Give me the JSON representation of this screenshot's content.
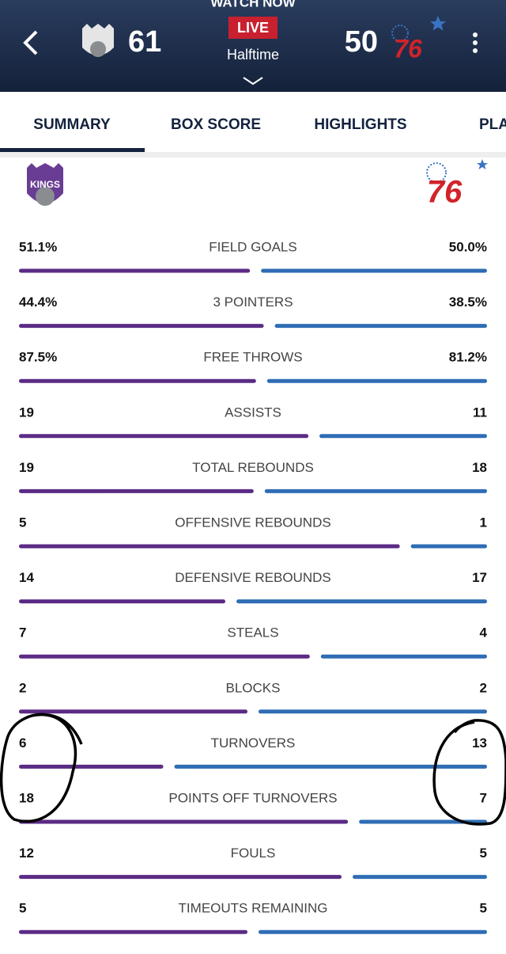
{
  "header": {
    "banner": "WATCH NOW",
    "away_score": "61",
    "home_score": "50",
    "status": "LIVE",
    "period": "Halftime",
    "home_logo": "76",
    "away_logo": "KINGS"
  },
  "tabs": [
    "SUMMARY",
    "BOX SCORE",
    "HIGHLIGHTS",
    "PLA"
  ],
  "stats": [
    {
      "label": "FIELD GOALS",
      "away": "51.1%",
      "home": "50.0%"
    },
    {
      "label": "3 POINTERS",
      "away": "44.4%",
      "home": "38.5%"
    },
    {
      "label": "FREE THROWS",
      "away": "87.5%",
      "home": "81.2%"
    },
    {
      "label": "ASSISTS",
      "away": "19",
      "home": "11"
    },
    {
      "label": "TOTAL REBOUNDS",
      "away": "19",
      "home": "18"
    },
    {
      "label": "OFFENSIVE REBOUNDS",
      "away": "5",
      "home": "1"
    },
    {
      "label": "DEFENSIVE REBOUNDS",
      "away": "14",
      "home": "17"
    },
    {
      "label": "STEALS",
      "away": "7",
      "home": "4"
    },
    {
      "label": "BLOCKS",
      "away": "2",
      "home": "2"
    },
    {
      "label": "TURNOVERS",
      "away": "6",
      "home": "13"
    },
    {
      "label": "POINTS OFF TURNOVERS",
      "away": "18",
      "home": "7"
    },
    {
      "label": "FOULS",
      "away": "12",
      "home": "5"
    },
    {
      "label": "TIMEOUTS REMAINING",
      "away": "5",
      "home": "5"
    }
  ]
}
